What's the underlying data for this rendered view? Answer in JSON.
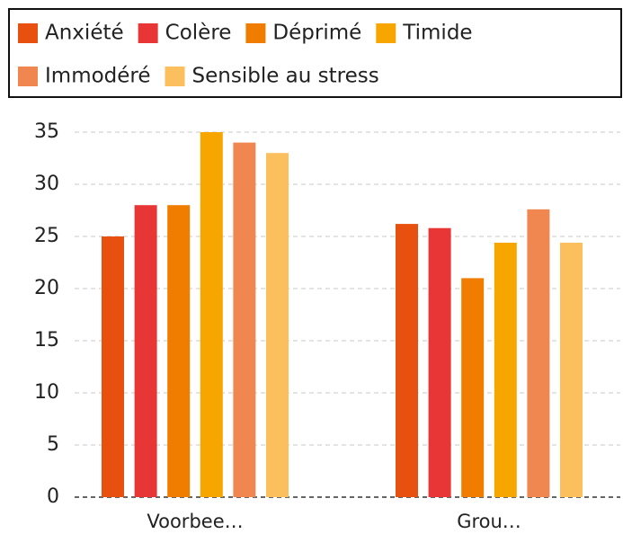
{
  "chart_data": {
    "type": "bar",
    "categories": [
      "Voorbee…",
      "Grou…"
    ],
    "series": [
      {
        "name": "Anxiété",
        "color": "#e8500f",
        "values": [
          25,
          26.2
        ]
      },
      {
        "name": "Colère",
        "color": "#e83535",
        "values": [
          28,
          25.8
        ]
      },
      {
        "name": "Déprimé",
        "color": "#f07d00",
        "values": [
          28,
          21
        ]
      },
      {
        "name": "Timide",
        "color": "#f7a600",
        "values": [
          35,
          24.4
        ]
      },
      {
        "name": "Immodéré",
        "color": "#f08650",
        "values": [
          34,
          27.6
        ]
      },
      {
        "name": "Sensible au stress",
        "color": "#fbbf5e",
        "values": [
          33,
          24.4
        ]
      }
    ],
    "ylim": [
      0,
      35
    ],
    "yticks": [
      0,
      5,
      10,
      15,
      20,
      25,
      30,
      35
    ],
    "grid": true,
    "legend": "top"
  }
}
